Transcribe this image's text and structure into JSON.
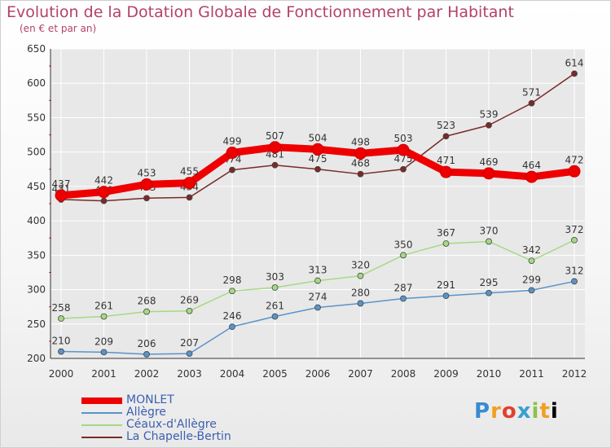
{
  "title": "Evolution de la Dotation Globale de Fonctionnement par Habitant",
  "subtitle": "(en € et par an)",
  "logo_text": "Proxiti",
  "colors": {
    "title": "#b4416b",
    "axis": "#333333",
    "grid": "#ffffff"
  },
  "chart_data": {
    "type": "line",
    "x": [
      "2000",
      "2001",
      "2002",
      "2003",
      "2004",
      "2005",
      "2006",
      "2007",
      "2008",
      "2009",
      "2010",
      "2011",
      "2012"
    ],
    "ylim": [
      200,
      650
    ],
    "yticks": [
      200,
      250,
      300,
      350,
      400,
      450,
      500,
      550,
      600,
      650
    ],
    "grid": true,
    "legend_position": "bottom-left",
    "series": [
      {
        "name": "MONLET",
        "color": "#ee0000",
        "values": [
          437,
          442,
          453,
          455,
          499,
          507,
          504,
          498,
          503,
          471,
          469,
          464,
          472
        ]
      },
      {
        "name": "Allègre",
        "color": "#5a93c9",
        "values": [
          210,
          209,
          206,
          207,
          246,
          261,
          274,
          280,
          287,
          291,
          295,
          299,
          312
        ]
      },
      {
        "name": "Céaux-d'Allègre",
        "color": "#a6d985",
        "values": [
          258,
          261,
          268,
          269,
          298,
          303,
          313,
          320,
          350,
          367,
          370,
          342,
          372
        ]
      },
      {
        "name": "La Chapelle-Bertin",
        "color": "#7a2a2a",
        "values": [
          431,
          429,
          433,
          434,
          474,
          481,
          475,
          468,
          475,
          523,
          539,
          571,
          614
        ]
      }
    ]
  }
}
